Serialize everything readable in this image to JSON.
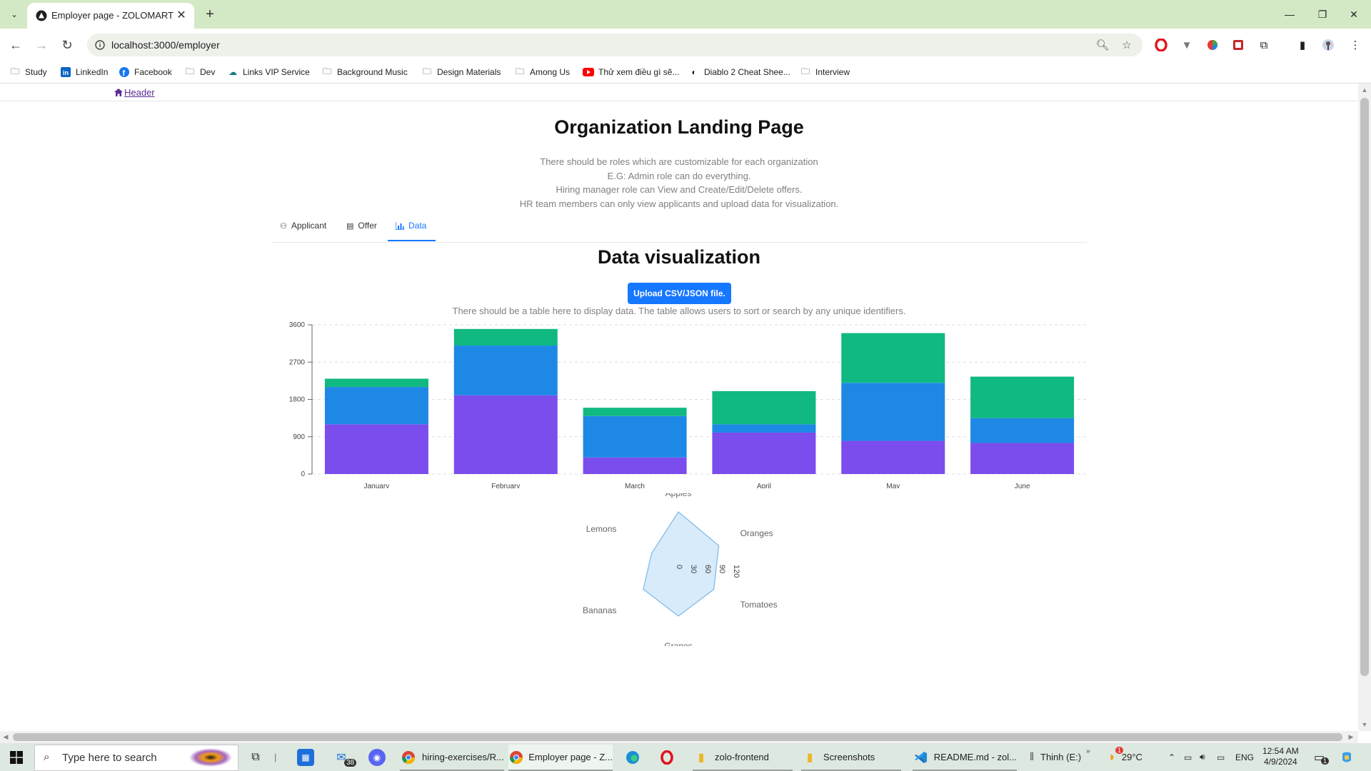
{
  "browser": {
    "tab_title": "Employer page - ZOLOMART",
    "url": "localhost:3000/employer",
    "bookmarks": [
      "Study",
      "LinkedIn",
      "Facebook",
      "Dev",
      "Links VIP Service",
      "Background Music",
      "Design Materials",
      "Among Us",
      "Thử xem điều gì sẽ...",
      "Diablo 2 Cheat Shee...",
      "Interview"
    ]
  },
  "page": {
    "header_link": "Header",
    "title": "Organization Landing Page",
    "description": [
      "There should be roles which are customizable for each organization",
      "E.G: Admin role can do everything.",
      "Hiring manager role can View and Create/Edit/Delete offers.",
      "HR team members can only view applicants and upload data for visualization."
    ],
    "tabs": [
      "Applicant",
      "Offer",
      "Data"
    ],
    "active_tab": "Data",
    "section_title": "Data visualization",
    "upload_label": "Upload CSV/JSON file.",
    "table_note": "There should be a table here to display data. The table allows users to sort or search by any unique identifiers."
  },
  "chart_data": [
    {
      "type": "bar",
      "stacked": true,
      "categories": [
        "January",
        "February",
        "March",
        "April",
        "May",
        "June"
      ],
      "series": [
        {
          "values": [
            1200,
            1900,
            400,
            1000,
            800,
            750
          ],
          "color": "#7b4ded"
        },
        {
          "values": [
            900,
            1200,
            1000,
            200,
            1400,
            600
          ],
          "color": "#1e88e5"
        },
        {
          "values": [
            200,
            400,
            200,
            800,
            1200,
            1000
          ],
          "color": "#10b981"
        }
      ],
      "y_ticks": [
        0,
        900,
        1800,
        2700,
        3600
      ],
      "ylim": [
        0,
        3600
      ],
      "grid": "horizontal dashed"
    },
    {
      "type": "radar",
      "axes": [
        "Apples",
        "Oranges",
        "Tomatoes",
        "Grapes",
        "Bananas",
        "Lemons"
      ],
      "values": [
        120,
        98,
        86,
        99,
        85,
        65
      ],
      "radial_ticks": [
        0,
        30,
        60,
        90,
        120
      ],
      "rmax": 150,
      "fill": "#d8ebfb",
      "stroke": "#7cb9e8"
    }
  ],
  "taskbar": {
    "search_placeholder": "Type here to search",
    "mail_badge": "38",
    "apps": [
      "hiring-exercises/R...",
      "Employer page - Z...",
      "zolo-frontend",
      "Screenshots",
      "README.md - zol...",
      "Thinh (E:)"
    ],
    "weather": "29°C",
    "weather_badge": "1",
    "lang": "ENG",
    "time": "12:54 AM",
    "date": "4/9/2024",
    "notif_badge": "1"
  }
}
